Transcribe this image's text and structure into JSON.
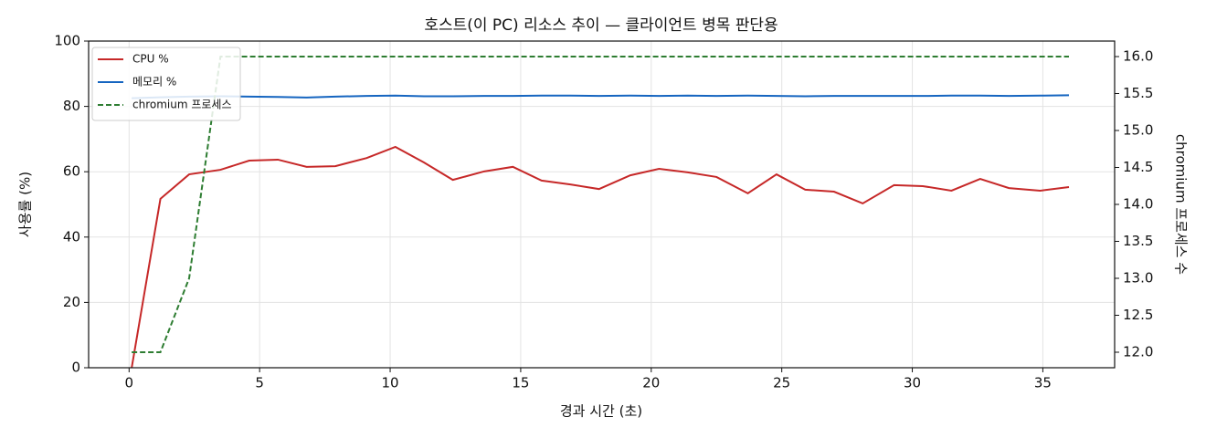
{
  "chart_data": {
    "type": "line",
    "title": "호스트(이 PC) 리소스 추이 — 클라이언트 병목 판단용",
    "x_label": "경과 시간 (초)",
    "y_label": "사용률 (%)",
    "y2_label": "chromium 프로세스 수",
    "x": [
      0.1,
      1.2,
      2.3,
      3.5,
      4.6,
      5.7,
      6.8,
      7.9,
      9.1,
      10.2,
      11.3,
      12.4,
      13.6,
      14.7,
      15.8,
      16.9,
      18.0,
      19.2,
      20.3,
      21.4,
      22.5,
      23.7,
      24.8,
      25.9,
      27.0,
      28.1,
      29.3,
      30.4,
      31.5,
      32.6,
      33.7,
      34.9,
      36.0
    ],
    "series": [
      {
        "name": "CPU %",
        "color": "#c62828",
        "dash": false,
        "values": [
          0,
          51.7,
          59.2,
          60.6,
          63.4,
          63.7,
          61.5,
          61.7,
          64.2,
          67.6,
          62.8,
          57.5,
          60.1,
          61.5,
          57.3,
          56.1,
          54.7,
          58.9,
          60.9,
          59.8,
          58.4,
          53.4,
          59.2,
          54.5,
          53.9,
          50.3,
          55.9,
          55.6,
          54.2,
          57.8,
          55.0,
          54.2,
          55.3
        ]
      },
      {
        "name": "메모리 %",
        "color": "#1565c0",
        "dash": false,
        "values": [
          82.5,
          82.8,
          83.0,
          83.1,
          83.0,
          82.9,
          82.7,
          83.0,
          83.2,
          83.3,
          83.1,
          83.1,
          83.2,
          83.2,
          83.3,
          83.3,
          83.2,
          83.3,
          83.2,
          83.3,
          83.2,
          83.3,
          83.2,
          83.1,
          83.2,
          83.2,
          83.2,
          83.2,
          83.3,
          83.3,
          83.2,
          83.3,
          83.4
        ]
      },
      {
        "name": "chromium 프로세스",
        "color": "#2e7d32",
        "dash": true,
        "axis": "y2",
        "values": [
          12,
          12,
          13,
          16,
          16,
          16,
          16,
          16,
          16,
          16,
          16,
          16,
          16,
          16,
          16,
          16,
          16,
          16,
          16,
          16,
          16,
          16,
          16,
          16,
          16,
          16,
          16,
          16,
          16,
          16,
          16,
          16,
          16
        ]
      }
    ],
    "xlim": [
      -1.55,
      37.75
    ],
    "xticks": [
      0,
      5,
      10,
      15,
      20,
      25,
      30,
      35
    ],
    "ylim": [
      0,
      100
    ],
    "yticks": [
      0,
      20,
      40,
      60,
      80,
      100
    ],
    "y2lim": [
      11.79,
      16.21
    ],
    "y2ticks": [
      {
        "value": 12,
        "label": "12.0"
      },
      {
        "value": 12.5,
        "label": "12.5"
      },
      {
        "value": 13,
        "label": "13.0"
      },
      {
        "value": 13.5,
        "label": "13.5"
      },
      {
        "value": 14,
        "label": "14.0"
      },
      {
        "value": 14.5,
        "label": "14.5"
      },
      {
        "value": 15,
        "label": "15.0"
      },
      {
        "value": 15.5,
        "label": "15.5"
      },
      {
        "value": 16,
        "label": "16.0"
      }
    ],
    "grid": true,
    "legend": "upper-left"
  }
}
